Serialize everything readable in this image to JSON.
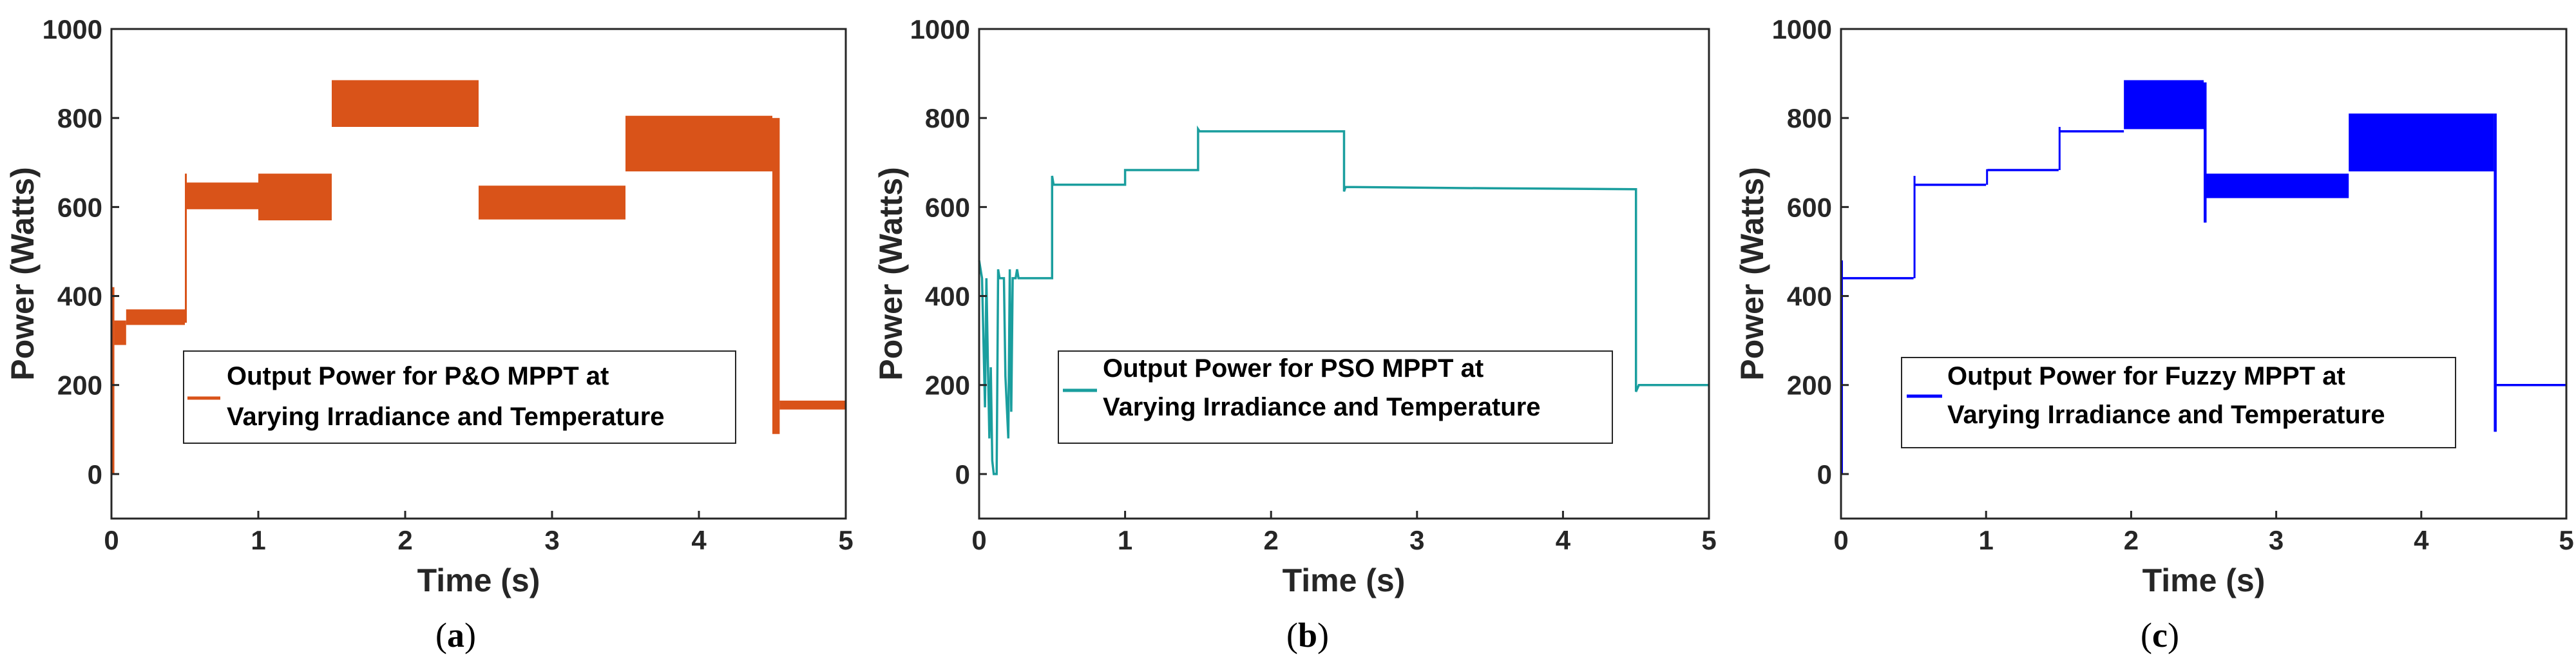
{
  "colors": {
    "axis": "#262626",
    "background": "#ffffff"
  },
  "chart_data": [
    {
      "type": "line",
      "panel": "a",
      "caption_open": "(",
      "caption_letter": "a",
      "caption_close": ")",
      "xlabel": "Time (s)",
      "ylabel": "Power (Watts)",
      "xlim": [
        0,
        5
      ],
      "ylim": [
        -100,
        1000
      ],
      "xticks": [
        0,
        1,
        2,
        3,
        4,
        5
      ],
      "yticks": [
        0,
        200,
        400,
        600,
        800,
        1000
      ],
      "grid": false,
      "legend_position": "center-left",
      "legend": [
        "Output Power for P&O MPPT at",
        "Varying Irradiance and Temperature"
      ],
      "color": "#D95319",
      "series": [
        {
          "name": "Output Power for P&O MPPT at Varying Irradiance and Temperature",
          "segments": [
            {
              "t0": 0.0,
              "t1": 0.02,
              "low": 0,
              "high": 420
            },
            {
              "t0": 0.02,
              "t1": 0.1,
              "low": 290,
              "high": 345
            },
            {
              "t0": 0.1,
              "t1": 0.5,
              "low": 335,
              "high": 370
            },
            {
              "t0": 0.5,
              "t1": 0.51,
              "low": 340,
              "high": 675
            },
            {
              "t0": 0.51,
              "t1": 1.0,
              "low": 595,
              "high": 655
            },
            {
              "t0": 1.0,
              "t1": 1.5,
              "low": 570,
              "high": 675
            },
            {
              "t0": 1.5,
              "t1": 2.5,
              "low": 780,
              "high": 885
            },
            {
              "t0": 2.5,
              "t1": 3.5,
              "low": 572,
              "high": 648
            },
            {
              "t0": 3.5,
              "t1": 4.5,
              "low": 680,
              "high": 805
            },
            {
              "t0": 4.5,
              "t1": 4.55,
              "low": 90,
              "high": 800
            },
            {
              "t0": 4.55,
              "t1": 5.0,
              "low": 145,
              "high": 165
            }
          ]
        }
      ]
    },
    {
      "type": "line",
      "panel": "b",
      "caption_open": "(",
      "caption_letter": "b",
      "caption_close": ")",
      "xlabel": "Time (s)",
      "ylabel": "Power (Watts)",
      "xlim": [
        0,
        5
      ],
      "ylim": [
        -100,
        1000
      ],
      "xticks": [
        0,
        1,
        2,
        3,
        4,
        5
      ],
      "yticks": [
        0,
        200,
        400,
        600,
        800,
        1000
      ],
      "grid": false,
      "legend_position": "center-left",
      "legend": [
        "Output Power for PSO MPPT at",
        "Varying Irradiance and Temperature"
      ],
      "color": "#1A9E9E",
      "series": [
        {
          "name": "Output Power for PSO MPPT at Varying Irradiance and Temperature",
          "points": [
            [
              0,
              480
            ],
            [
              0.02,
              440
            ],
            [
              0.04,
              150
            ],
            [
              0.05,
              440
            ],
            [
              0.06,
              250
            ],
            [
              0.07,
              80
            ],
            [
              0.08,
              240
            ],
            [
              0.09,
              30
            ],
            [
              0.1,
              0
            ],
            [
              0.12,
              0
            ],
            [
              0.13,
              460
            ],
            [
              0.14,
              440
            ],
            [
              0.17,
              440
            ],
            [
              0.18,
              220
            ],
            [
              0.2,
              80
            ],
            [
              0.21,
              460
            ],
            [
              0.22,
              140
            ],
            [
              0.23,
              440
            ],
            [
              0.25,
              440
            ],
            [
              0.26,
              460
            ],
            [
              0.27,
              440
            ],
            [
              0.5,
              440
            ],
            [
              0.5,
              670
            ],
            [
              0.51,
              650
            ],
            [
              1.0,
              650
            ],
            [
              1.0,
              683
            ],
            [
              1.5,
              683
            ],
            [
              1.5,
              775
            ],
            [
              1.51,
              770
            ],
            [
              2.5,
              770
            ],
            [
              2.5,
              635
            ],
            [
              2.51,
              645
            ],
            [
              3.5,
              642
            ],
            [
              4.5,
              640
            ],
            [
              4.5,
              185
            ],
            [
              4.52,
              200
            ],
            [
              5.0,
              200
            ]
          ]
        }
      ]
    },
    {
      "type": "line",
      "panel": "c",
      "caption_open": "(",
      "caption_letter": "c",
      "caption_close": ")",
      "xlabel": "Time (s)",
      "ylabel": "Power (Watts)",
      "xlim": [
        0,
        5
      ],
      "ylim": [
        -100,
        1000
      ],
      "xticks": [
        0,
        1,
        2,
        3,
        4,
        5
      ],
      "yticks": [
        0,
        200,
        400,
        600,
        800,
        1000
      ],
      "grid": false,
      "legend_position": "center-left",
      "legend": [
        "Output Power for Fuzzy MPPT at",
        "Varying Irradiance and Temperature"
      ],
      "color": "#0000FF",
      "series": [
        {
          "name": "Output Power for Fuzzy MPPT at Varying Irradiance and Temperature",
          "segments": [
            {
              "t0": 0.0,
              "t1": 0.01,
              "low": 0,
              "high": 480
            },
            {
              "t0": 0.01,
              "t1": 0.5,
              "low": 440,
              "high": 440
            },
            {
              "t0": 0.5,
              "t1": 0.51,
              "low": 440,
              "high": 670
            },
            {
              "t0": 0.51,
              "t1": 1.0,
              "low": 650,
              "high": 650
            },
            {
              "t0": 1.0,
              "t1": 1.01,
              "low": 650,
              "high": 685
            },
            {
              "t0": 1.01,
              "t1": 1.5,
              "low": 683,
              "high": 683
            },
            {
              "t0": 1.5,
              "t1": 1.51,
              "low": 683,
              "high": 780
            },
            {
              "t0": 1.51,
              "t1": 1.95,
              "low": 770,
              "high": 770
            },
            {
              "t0": 1.95,
              "t1": 2.5,
              "low": 775,
              "high": 885
            },
            {
              "t0": 2.5,
              "t1": 2.52,
              "low": 565,
              "high": 880
            },
            {
              "t0": 2.52,
              "t1": 3.5,
              "low": 620,
              "high": 675
            },
            {
              "t0": 3.5,
              "t1": 4.5,
              "low": 680,
              "high": 810
            },
            {
              "t0": 4.5,
              "t1": 4.52,
              "low": 95,
              "high": 810
            },
            {
              "t0": 4.52,
              "t1": 5.0,
              "low": 198,
              "high": 200
            }
          ]
        }
      ]
    }
  ]
}
